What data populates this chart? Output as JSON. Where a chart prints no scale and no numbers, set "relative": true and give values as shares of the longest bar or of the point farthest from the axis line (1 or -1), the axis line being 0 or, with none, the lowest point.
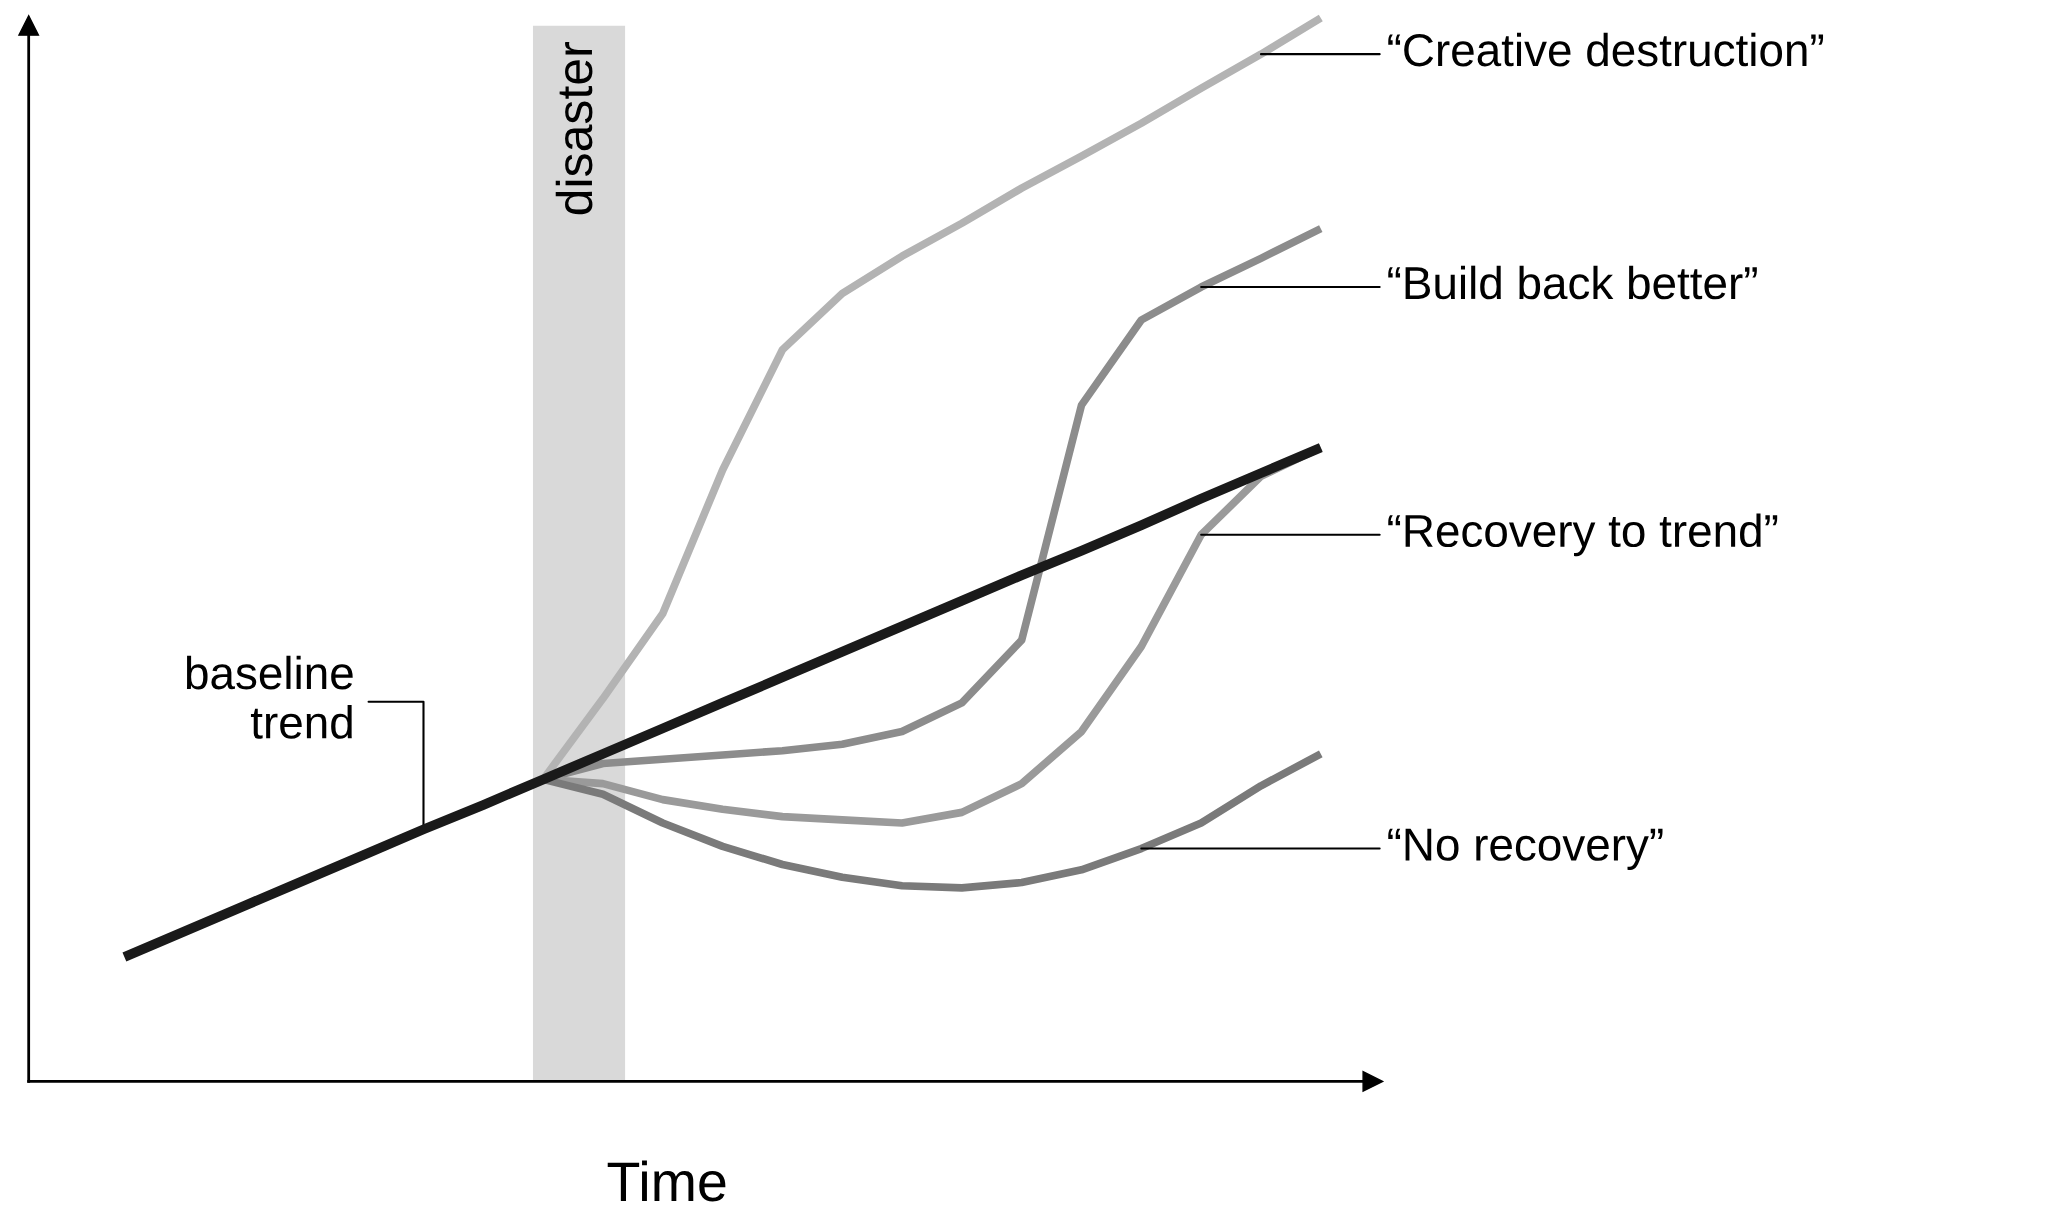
{
  "chart_data": {
    "type": "line",
    "relative": true,
    "xlabel": "Time",
    "legend": false,
    "annotations": [
      "disaster"
    ],
    "marker": "none",
    "line_style": "solid",
    "categories": [
      null,
      null,
      null,
      null,
      null,
      null,
      null,
      null,
      null,
      null,
      null,
      null,
      null,
      null,
      null,
      null,
      null,
      null,
      null,
      null,
      null
    ],
    "series": [
      {
        "name": "baseline\ntrend",
        "color": "#1a1a1a",
        "values": [
          0.117,
          0.141,
          0.165,
          0.189,
          0.213,
          0.237,
          0.26,
          0.284,
          0.308,
          0.332,
          0.356,
          0.38,
          0.404,
          0.428,
          0.452,
          0.476,
          0.499,
          0.523,
          0.548,
          0.572,
          0.596
        ]
      },
      {
        "name": "“Creative destruction”",
        "color": "#b3b3b3",
        "values": [
          null,
          null,
          null,
          null,
          null,
          null,
          null,
          0.284,
          0.36,
          0.44,
          0.575,
          0.688,
          0.741,
          0.776,
          0.807,
          0.84,
          0.87,
          0.901,
          0.934,
          0.966,
          1.0
        ]
      },
      {
        "name": "“Build back better”",
        "color": "#8c8c8c",
        "values": [
          null,
          null,
          null,
          null,
          null,
          null,
          null,
          0.284,
          0.299,
          0.303,
          0.307,
          0.311,
          0.317,
          0.329,
          0.356,
          0.415,
          0.636,
          0.716,
          0.747,
          0.774,
          0.802
        ]
      },
      {
        "name": "“Recovery to trend”",
        "color": "#9a9a9a",
        "values": [
          null,
          null,
          null,
          null,
          null,
          null,
          null,
          0.284,
          0.28,
          0.265,
          0.256,
          0.249,
          0.246,
          0.243,
          0.253,
          0.28,
          0.329,
          0.409,
          0.514,
          0.569,
          0.596
        ]
      },
      {
        "name": "“No recovery”",
        "color": "#7a7a7a",
        "values": [
          null,
          null,
          null,
          null,
          null,
          null,
          null,
          0.284,
          0.27,
          0.243,
          0.221,
          0.204,
          0.192,
          0.184,
          0.182,
          0.187,
          0.199,
          0.219,
          0.243,
          0.278,
          0.308
        ]
      }
    ]
  }
}
